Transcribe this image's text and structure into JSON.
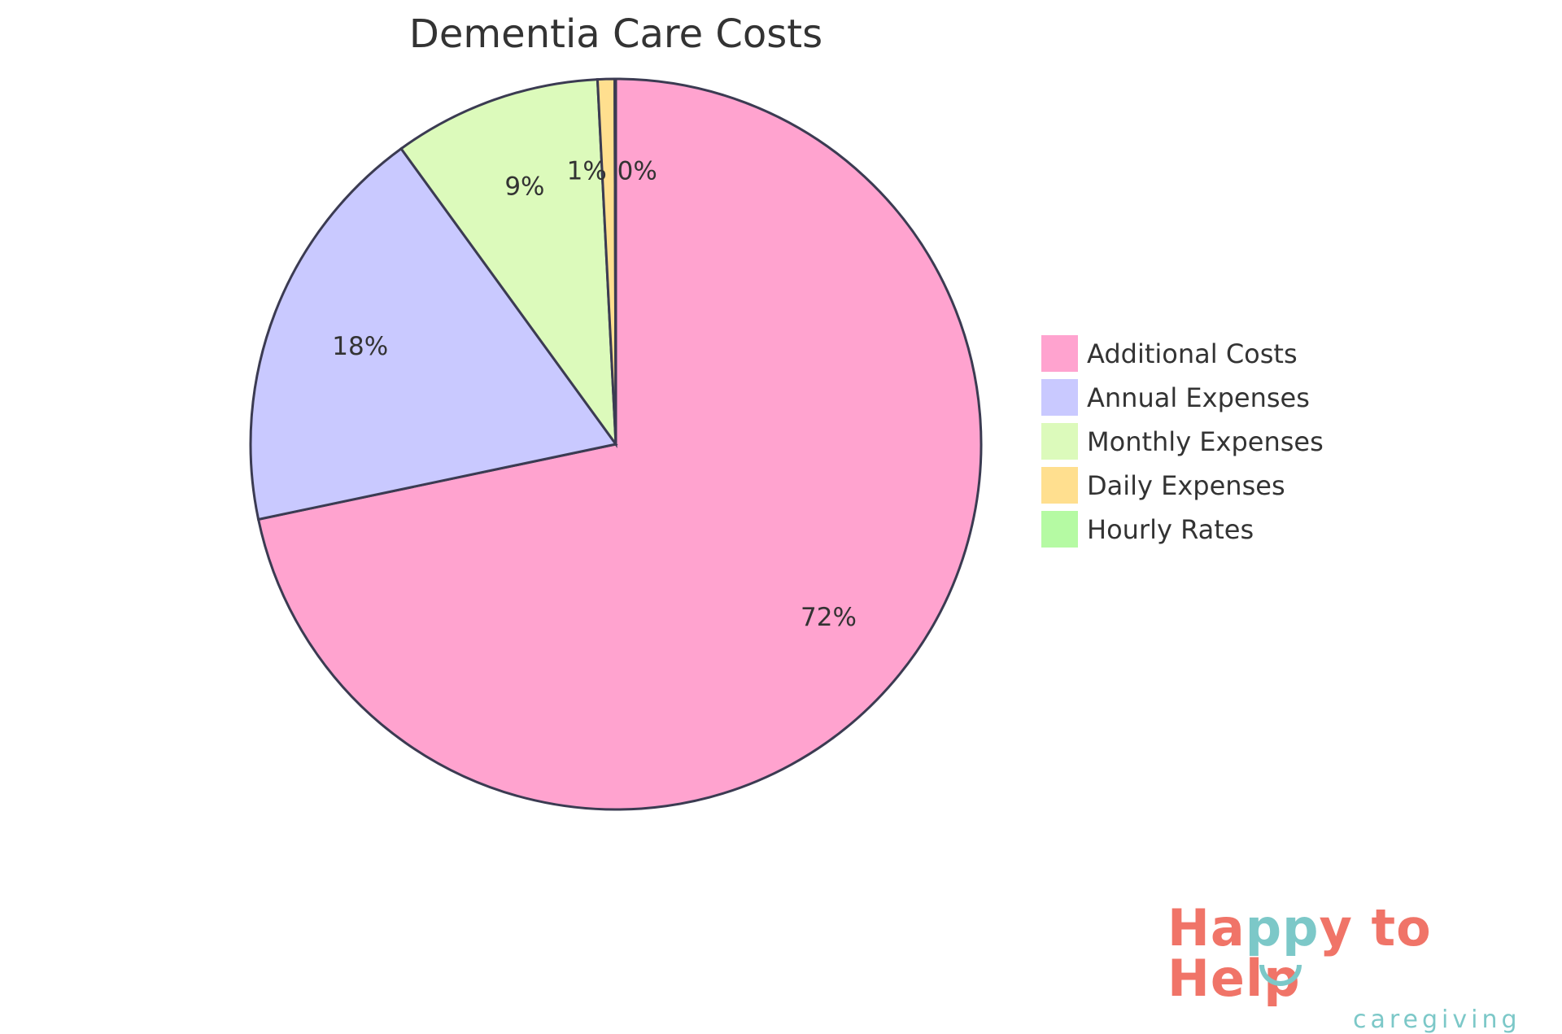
{
  "chart_data": {
    "type": "pie",
    "title": "Dementia Care Costs",
    "slices": [
      {
        "label": "Additional Costs",
        "value": 71.7,
        "display": "72%",
        "color": "#FFA3CF"
      },
      {
        "label": "Annual Expenses",
        "value": 18.3,
        "display": "18%",
        "color": "#C9C9FF"
      },
      {
        "label": "Monthly Expenses",
        "value": 9.2,
        "display": "9%",
        "color": "#DCFABB"
      },
      {
        "label": "Daily Expenses",
        "value": 0.75,
        "display": "1%",
        "color": "#FFDF8F"
      },
      {
        "label": "Hourly Rates",
        "value": 0.05,
        "display": "0%",
        "color": "#B5FAA3"
      }
    ],
    "legend_position": "right",
    "stroke_color": "#3B3B52"
  },
  "logo": {
    "main_a": "Ha",
    "main_b": "pp",
    "main_c": "y to Help",
    "sub": "caregiving"
  }
}
